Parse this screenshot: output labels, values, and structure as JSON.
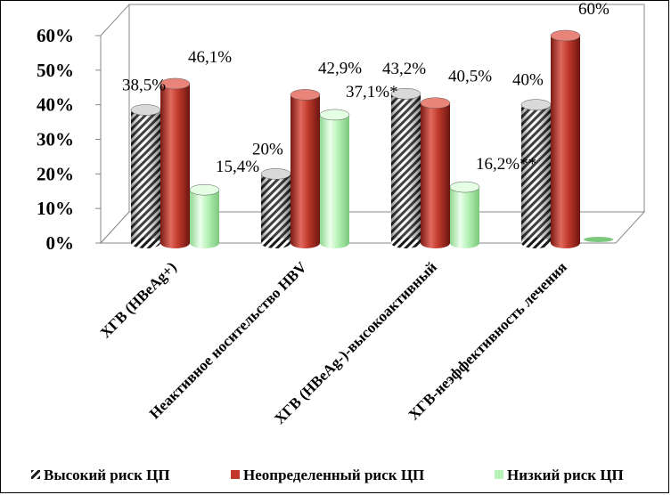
{
  "chart_data": {
    "type": "bar",
    "categories": [
      "ХГВ (HBeAg+)",
      "Неактивное носительство HBV",
      "ХГВ (HBeAg-)-высокоактивный",
      "ХГВ-неэффективность лечения"
    ],
    "series": [
      {
        "name": "Высокий риск ЦП",
        "values": [
          38.5,
          20,
          43.2,
          40
        ],
        "labels": [
          "38,5%",
          "20%",
          "43,2%",
          "40%"
        ],
        "color": "#000000",
        "pattern": "diagonal-hatch"
      },
      {
        "name": "Неопределенный риск ЦП",
        "values": [
          46.1,
          42.9,
          40.5,
          60
        ],
        "labels": [
          "46,1%",
          "42,9%",
          "40,5%",
          "60%"
        ],
        "color": "#c0392b",
        "pattern": "solid"
      },
      {
        "name": "Низкий риск ЦП",
        "values": [
          15.4,
          37.1,
          16.2,
          0
        ],
        "labels": [
          "15,4%",
          "37,1%*",
          "16,2%**",
          ""
        ],
        "color": "#b8f2b8",
        "pattern": "solid"
      }
    ],
    "yticks": [
      "0%",
      "10%",
      "20%",
      "30%",
      "40%",
      "50%",
      "60%"
    ],
    "ylim": [
      0,
      60
    ],
    "grid": false,
    "legend": "bottom",
    "style": "3d-cylinder"
  }
}
